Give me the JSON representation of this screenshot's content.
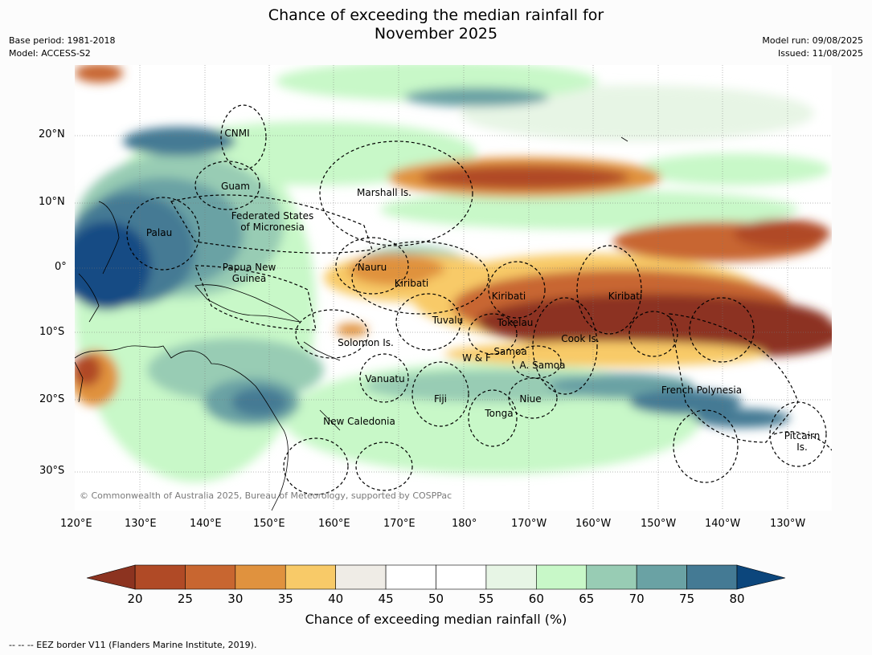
{
  "title": {
    "line1": "Chance of exceeding the median rainfall for",
    "line2": "November 2025"
  },
  "meta": {
    "base_period": "Base period: 1981-2018",
    "model": "Model: ACCESS-S2",
    "model_run": "Model run: 09/08/2025",
    "issued": "Issued: 11/08/2025"
  },
  "map": {
    "lon_ticks": [
      "120°E",
      "130°E",
      "140°E",
      "150°E",
      "160°E",
      "170°E",
      "180°",
      "170°W",
      "160°W",
      "150°W",
      "140°W",
      "130°W"
    ],
    "lat_ticks": [
      "20°N",
      "10°N",
      "0°",
      "10°S",
      "20°S",
      "30°S"
    ],
    "labels": [
      "CNMI",
      "Guam",
      "Marshall Is.",
      "Federated States",
      "of Micronesia",
      "Palau",
      "Nauru",
      "Papua New",
      "Guinea",
      "Kiribati",
      "Kiribati",
      "Kiribati",
      "Tuvalu",
      "Tokelau",
      "Solomon Is.",
      "Cook Is.",
      "Samoa",
      "W & F",
      "A. Samoa",
      "Vanuatu",
      "Fiji",
      "Niue",
      "French Polynesia",
      "Tonga",
      "New Caledonia",
      "Pitcairn",
      "Is."
    ],
    "copyright": "© Commonwealth of Australia 2025, Bureau of Meteorology, supported by COSPPac"
  },
  "colorbar": {
    "ticks": [
      "20",
      "25",
      "30",
      "35",
      "40",
      "45",
      "50",
      "55",
      "60",
      "65",
      "70",
      "75",
      "80"
    ],
    "colors": [
      "#b04a26",
      "#c86630",
      "#e0923e",
      "#f8ca68",
      "#efece6",
      "#ffffff",
      "#ffffff",
      "#e7f5e5",
      "#c8f8c8",
      "#98ccb4",
      "#6aa2a4",
      "#447a94",
      "#154c84"
    ],
    "under_color": "#8c3320",
    "over_color": "#0c467c",
    "label": "Chance of exceeding median rainfall (%)"
  },
  "footnote": "--  --  -- EEZ border V11 (Flanders Marine Institute, 2019)."
}
